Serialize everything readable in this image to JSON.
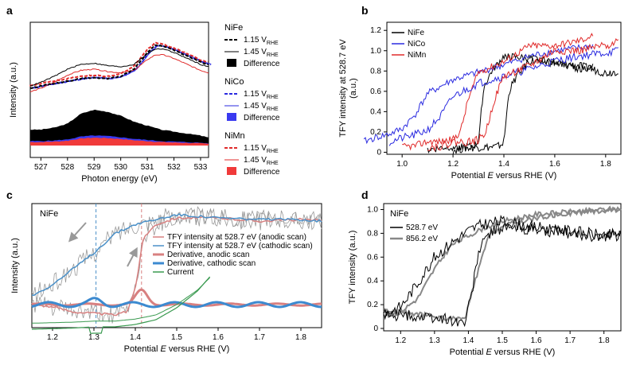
{
  "panels": {
    "a": {
      "letter": "a",
      "ylabel": "Intensity (a.u.)",
      "xlabel": "Photon energy (eV)",
      "xticks": [
        "527",
        "528",
        "529",
        "530",
        "531",
        "532",
        "533"
      ],
      "legend": [
        {
          "group": "NiFe",
          "items": [
            "1.15 V",
            "1.45 V",
            "Difference"
          ],
          "colors": [
            "#000000",
            "#000000",
            "#000000"
          ]
        },
        {
          "group": "NiCo",
          "items": [
            "1.15 V",
            "1.45 V",
            "Difference"
          ],
          "colors": [
            "#2a2ae0",
            "#2a2ae0",
            "#3a3af0"
          ]
        },
        {
          "group": "NiMn",
          "items": [
            "1.15 V",
            "1.45 V",
            "Difference"
          ],
          "colors": [
            "#e02a2a",
            "#e02a2a",
            "#f03a3a"
          ]
        }
      ],
      "subscript": "RHE"
    },
    "b": {
      "letter": "b",
      "ylabel_line1": "TFY intensity at 528.7 eV",
      "ylabel_line2": "(a.u.)",
      "xlabel_pre": "Potential ",
      "xlabel_var": "E",
      "xlabel_post": " versus RHE (V)",
      "xticks": [
        "1.0",
        "1.2",
        "1.4",
        "1.6",
        "1.8"
      ],
      "yticks": [
        "0",
        "0.2",
        "0.4",
        "0.6",
        "0.8",
        "1.0",
        "1.2"
      ],
      "legend": [
        "NiFe",
        "NiCo",
        "NiMn"
      ]
    },
    "c": {
      "letter": "c",
      "ylabel": "Intensity (a.u.)",
      "xlabel_pre": "Potential ",
      "xlabel_var": "E",
      "xlabel_post": " versus RHE (V)",
      "xticks": [
        "1.2",
        "1.3",
        "1.4",
        "1.5",
        "1.6",
        "1.7",
        "1.8"
      ],
      "sample": "NiFe",
      "legend": [
        "TFY intensity at 528.7 eV (anodic scan)",
        "TFY intensity at 528.7 eV (cathodic scan)",
        "Derivative, anodic scan",
        "Derivative, cathodic scan",
        "Current"
      ]
    },
    "d": {
      "letter": "d",
      "ylabel": "TFY intensity (a.u.)",
      "xlabel_pre": "Potential ",
      "xlabel_var": "E",
      "xlabel_post": " versus RHE (V)",
      "xticks": [
        "1.2",
        "1.3",
        "1.4",
        "1.5",
        "1.6",
        "1.7",
        "1.8"
      ],
      "yticks": [
        "0",
        "0.2",
        "0.4",
        "0.6",
        "0.8",
        "1.0"
      ],
      "sample": "NiFe",
      "legend": [
        "528.7 eV",
        "856.2 eV"
      ]
    }
  },
  "colors": {
    "nife": "#000000",
    "nico": "#2a2ae0",
    "nimn": "#e02a2a",
    "tfy_anodic": "#d88080",
    "tfy_cathodic": "#4a90c8",
    "deriv_anodic": "#d88080",
    "deriv_cathodic": "#3c8ad0",
    "current": "#3a9a50",
    "grey": "#888888"
  },
  "chart_data": [
    {
      "panel": "a",
      "type": "line",
      "xlim": [
        526.6,
        533.3
      ],
      "series": [
        {
          "name": "NiFe 1.15 V",
          "x": [
            526.6,
            527,
            527.5,
            528,
            528.5,
            529,
            529.5,
            530,
            530.5,
            531,
            531.3,
            531.6,
            532,
            532.5,
            533,
            533.3
          ],
          "y": [
            0.58,
            0.6,
            0.62,
            0.64,
            0.66,
            0.67,
            0.66,
            0.68,
            0.74,
            0.88,
            0.94,
            0.93,
            0.9,
            0.85,
            0.8,
            0.78
          ]
        },
        {
          "name": "NiFe 1.45 V",
          "x": [
            526.6,
            527,
            527.5,
            528,
            528.5,
            529,
            529.5,
            530,
            530.5,
            531,
            531.3,
            531.6,
            532,
            532.5,
            533,
            533.3
          ],
          "y": [
            0.6,
            0.63,
            0.68,
            0.74,
            0.78,
            0.79,
            0.77,
            0.76,
            0.78,
            0.87,
            0.91,
            0.91,
            0.88,
            0.83,
            0.78,
            0.76
          ]
        },
        {
          "name": "NiFe Difference",
          "x": [
            526.6,
            527,
            527.5,
            528,
            528.5,
            529,
            529.5,
            530,
            530.5,
            531,
            531.5,
            532,
            532.5,
            533,
            533.3
          ],
          "y": [
            0.18,
            0.18,
            0.19,
            0.21,
            0.26,
            0.28,
            0.27,
            0.25,
            0.22,
            0.2,
            0.18,
            0.17,
            0.16,
            0.15,
            0.14
          ]
        }
      ]
    },
    {
      "panel": "b",
      "type": "line",
      "xlim": [
        0.94,
        1.86
      ],
      "ylim": [
        -0.02,
        1.28
      ],
      "series": [
        {
          "name": "NiFe",
          "x": [
            1.2,
            1.25,
            1.3,
            1.35,
            1.38,
            1.4,
            1.42,
            1.45,
            1.5,
            1.6,
            1.7,
            1.8,
            1.85
          ],
          "y": [
            0.02,
            0.04,
            0.05,
            0.05,
            0.06,
            0.1,
            0.6,
            0.75,
            0.9,
            0.88,
            0.85,
            0.78,
            0.8
          ]
        },
        {
          "name": "NiCo",
          "x": [
            0.95,
            1.0,
            1.05,
            1.1,
            1.15,
            1.2,
            1.3,
            1.4,
            1.5,
            1.6,
            1.7,
            1.8,
            1.85
          ],
          "y": [
            0.1,
            0.14,
            0.17,
            0.22,
            0.35,
            0.55,
            0.68,
            0.75,
            0.82,
            0.9,
            0.95,
            0.98,
            1.0
          ]
        },
        {
          "name": "NiMn",
          "x": [
            1.1,
            1.15,
            1.2,
            1.25,
            1.3,
            1.33,
            1.36,
            1.4,
            1.5,
            1.6,
            1.7,
            1.8,
            1.85
          ],
          "y": [
            0.05,
            0.06,
            0.1,
            0.1,
            0.12,
            0.2,
            0.5,
            0.75,
            0.85,
            1.0,
            1.0,
            1.05,
            1.1
          ]
        }
      ]
    },
    {
      "panel": "c",
      "type": "line",
      "xlim": [
        1.15,
        1.85
      ],
      "series": [
        {
          "name": "TFY intensity at 528.7 eV (anodic scan)",
          "x": [
            1.15,
            1.2,
            1.25,
            1.3,
            1.35,
            1.38,
            1.4,
            1.42,
            1.45,
            1.5,
            1.6,
            1.7,
            1.8,
            1.85
          ],
          "y": [
            0.3,
            0.28,
            0.25,
            0.24,
            0.23,
            0.25,
            0.4,
            0.72,
            0.8,
            0.84,
            0.84,
            0.82,
            0.83,
            0.82
          ]
        },
        {
          "name": "TFY intensity at 528.7 eV (cathodic scan)",
          "x": [
            1.15,
            1.2,
            1.25,
            1.3,
            1.35,
            1.4,
            1.45,
            1.5,
            1.6,
            1.7,
            1.8,
            1.85
          ],
          "y": [
            0.35,
            0.42,
            0.52,
            0.62,
            0.74,
            0.8,
            0.83,
            0.86,
            0.84,
            0.83,
            0.83,
            0.82
          ]
        },
        {
          "name": "Derivative, anodic scan",
          "x": [
            1.15,
            1.3,
            1.38,
            1.41,
            1.44,
            1.5,
            1.6,
            1.7,
            1.85
          ],
          "y": [
            0.0,
            0.0,
            0.01,
            0.05,
            0.02,
            0.0,
            0.0,
            0.0,
            0.0
          ]
        },
        {
          "name": "Derivative, cathodic scan",
          "x": [
            1.15,
            1.2,
            1.25,
            1.3,
            1.35,
            1.4,
            1.5,
            1.6,
            1.7,
            1.8,
            1.85
          ],
          "y": [
            0.0,
            0.01,
            0.0,
            0.02,
            0.0,
            0.01,
            0.0,
            0.01,
            0.0,
            0.01,
            0.0
          ]
        },
        {
          "name": "Current",
          "x": [
            1.15,
            1.25,
            1.3,
            1.35,
            1.4,
            1.45,
            1.5,
            1.55,
            1.58
          ],
          "y": [
            -0.04,
            -0.035,
            -0.03,
            -0.03,
            -0.02,
            0.0,
            0.05,
            0.12,
            0.18
          ]
        }
      ]
    },
    {
      "panel": "d",
      "type": "line",
      "xlim": [
        1.15,
        1.85
      ],
      "ylim": [
        -0.02,
        1.05
      ],
      "series": [
        {
          "name": "528.7 eV",
          "x": [
            1.15,
            1.2,
            1.25,
            1.3,
            1.35,
            1.38,
            1.4,
            1.42,
            1.45,
            1.5,
            1.6,
            1.7,
            1.8,
            1.85
          ],
          "y": [
            0.12,
            0.18,
            0.38,
            0.6,
            0.72,
            0.78,
            0.82,
            0.85,
            0.88,
            0.9,
            0.85,
            0.82,
            0.78,
            0.8
          ]
        },
        {
          "name": "856.2 eV",
          "x": [
            1.15,
            1.2,
            1.25,
            1.3,
            1.35,
            1.4,
            1.45,
            1.5,
            1.6,
            1.7,
            1.8,
            1.85
          ],
          "y": [
            0.1,
            0.14,
            0.25,
            0.5,
            0.7,
            0.78,
            0.85,
            0.9,
            0.96,
            0.98,
            1.0,
            1.01
          ]
        }
      ]
    }
  ]
}
